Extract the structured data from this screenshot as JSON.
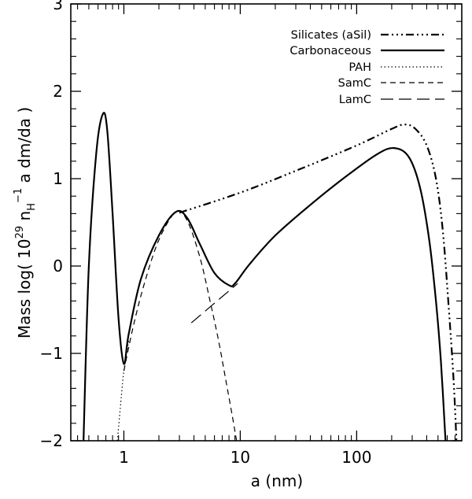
{
  "chart_data": {
    "type": "line",
    "xscale": "log",
    "xlim": [
      0.35,
      800
    ],
    "ylim": [
      -2,
      3
    ],
    "xlabel": "a (nm)",
    "ylabel_parts": {
      "prefix": "Mass log( 10",
      "sup1": "29",
      "mid": " n",
      "sub": "H",
      "sup2": "−1",
      "suffix": " a dm/da )"
    },
    "xticks": [
      {
        "value": 1,
        "label": "1"
      },
      {
        "value": 10,
        "label": "10"
      },
      {
        "value": 100,
        "label": "100"
      }
    ],
    "yticks": [
      {
        "value": -2,
        "label": "−2"
      },
      {
        "value": -1,
        "label": "−1"
      },
      {
        "value": 0,
        "label": "0"
      },
      {
        "value": 1,
        "label": "1"
      },
      {
        "value": 2,
        "label": "2"
      },
      {
        "value": 3,
        "label": "3"
      }
    ],
    "legend_position": "top-right",
    "series": [
      {
        "name": "Silicates (aSil)",
        "style": "dash-dot-dot-dot",
        "weight": "bold",
        "points": [
          [
            3.0,
            0.61
          ],
          [
            10,
            0.84
          ],
          [
            30,
            1.09
          ],
          [
            100,
            1.38
          ],
          [
            200,
            1.57
          ],
          [
            260,
            1.62
          ],
          [
            320,
            1.57
          ],
          [
            400,
            1.38
          ],
          [
            480,
            1.0
          ],
          [
            550,
            0.4
          ],
          [
            620,
            -0.5
          ],
          [
            680,
            -1.3
          ],
          [
            720,
            -2.0
          ]
        ]
      },
      {
        "name": "Carbonaceous",
        "style": "solid",
        "weight": "bold",
        "points": [
          [
            0.45,
            -2.0
          ],
          [
            0.5,
            0.0
          ],
          [
            0.58,
            1.3
          ],
          [
            0.66,
            1.74
          ],
          [
            0.72,
            1.55
          ],
          [
            0.8,
            0.6
          ],
          [
            0.9,
            -0.6
          ],
          [
            1.0,
            -1.12
          ],
          [
            1.1,
            -0.78
          ],
          [
            1.4,
            -0.15
          ],
          [
            2.0,
            0.35
          ],
          [
            2.8,
            0.62
          ],
          [
            3.5,
            0.55
          ],
          [
            4.5,
            0.25
          ],
          [
            6.0,
            -0.08
          ],
          [
            8.0,
            -0.22
          ],
          [
            9.0,
            -0.2
          ],
          [
            12,
            0.02
          ],
          [
            20,
            0.35
          ],
          [
            40,
            0.7
          ],
          [
            80,
            1.02
          ],
          [
            150,
            1.28
          ],
          [
            210,
            1.35
          ],
          [
            280,
            1.25
          ],
          [
            350,
            0.9
          ],
          [
            420,
            0.3
          ],
          [
            480,
            -0.4
          ],
          [
            530,
            -1.1
          ],
          [
            580,
            -2.0
          ]
        ]
      },
      {
        "name": "PAH",
        "style": "dotted",
        "weight": "normal",
        "points": [
          [
            0.88,
            -2.0
          ],
          [
            0.95,
            -1.5
          ],
          [
            1.0,
            -1.2
          ],
          [
            1.1,
            -0.85
          ]
        ]
      },
      {
        "name": "SamC",
        "style": "short-dash",
        "weight": "normal",
        "points": [
          [
            1.0,
            -1.2
          ],
          [
            1.2,
            -0.7
          ],
          [
            1.5,
            -0.2
          ],
          [
            2.0,
            0.3
          ],
          [
            2.8,
            0.62
          ],
          [
            3.5,
            0.52
          ],
          [
            4.5,
            0.1
          ],
          [
            5.5,
            -0.4
          ],
          [
            6.5,
            -0.85
          ],
          [
            7.5,
            -1.3
          ],
          [
            8.5,
            -1.7
          ],
          [
            9.3,
            -2.0
          ]
        ]
      },
      {
        "name": "LamC",
        "style": "long-dash",
        "weight": "normal",
        "points": [
          [
            3.8,
            -0.65
          ],
          [
            9.5,
            -0.2
          ]
        ]
      }
    ]
  }
}
